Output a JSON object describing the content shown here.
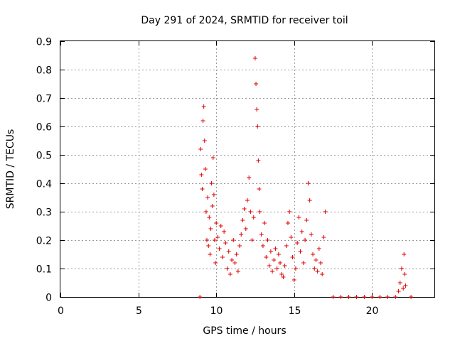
{
  "chart_data": {
    "type": "scatter",
    "title": "Day 291 of 2024, SRMTID for receiver toil",
    "xlabel": "GPS time / hours",
    "ylabel": "SRMTID / TECUs",
    "xlim": [
      0,
      24
    ],
    "ylim": [
      0,
      0.9
    ],
    "xticks": [
      "0",
      "5",
      "10",
      "15",
      "20"
    ],
    "yticks": [
      "0",
      "0.1",
      "0.2",
      "0.3",
      "0.4",
      "0.5",
      "0.6",
      "0.7",
      "0.8",
      "0.9"
    ],
    "grid": true,
    "marker": "+",
    "color": "#e00000",
    "series": [
      {
        "x": [
          8.95,
          9.0,
          9.05,
          9.1,
          9.15,
          9.2,
          9.25,
          9.3,
          9.35,
          9.4,
          9.45,
          9.5,
          9.55,
          9.6,
          9.65,
          9.7,
          9.75,
          9.8,
          9.85,
          9.9,
          9.95,
          10.0,
          10.1,
          10.2,
          10.3,
          10.4,
          10.5,
          10.6,
          10.7,
          10.8,
          10.9,
          11.0,
          11.1,
          11.2,
          11.3,
          11.4,
          11.5,
          11.6,
          11.7,
          11.8,
          11.9,
          12.0,
          12.1,
          12.2,
          12.3,
          12.4,
          12.5,
          12.55,
          12.6,
          12.65,
          12.7,
          12.75,
          12.8,
          12.9,
          13.0,
          13.1,
          13.2,
          13.3,
          13.4,
          13.5,
          13.6,
          13.7,
          13.8,
          13.9,
          14.0,
          14.1,
          14.2,
          14.3,
          14.4,
          14.5,
          14.6,
          14.7,
          14.8,
          14.9,
          15.0,
          15.1,
          15.2,
          15.3,
          15.4,
          15.5,
          15.6,
          15.7,
          15.8,
          15.9,
          16.0,
          16.1,
          16.2,
          16.3,
          16.4,
          16.5,
          16.6,
          16.7,
          16.8,
          16.9,
          17.0,
          17.5,
          18.0,
          18.5,
          19.0,
          19.5,
          20.0,
          20.5,
          21.0,
          21.5,
          21.7,
          21.8,
          21.9,
          22.0,
          22.05,
          22.1,
          22.15,
          22.5
        ],
        "y": [
          0.0,
          0.52,
          0.43,
          0.38,
          0.62,
          0.67,
          0.55,
          0.45,
          0.3,
          0.2,
          0.35,
          0.18,
          0.28,
          0.15,
          0.24,
          0.4,
          0.32,
          0.49,
          0.36,
          0.2,
          0.12,
          0.26,
          0.21,
          0.17,
          0.25,
          0.14,
          0.23,
          0.19,
          0.1,
          0.16,
          0.08,
          0.13,
          0.2,
          0.12,
          0.15,
          0.09,
          0.18,
          0.22,
          0.27,
          0.31,
          0.24,
          0.34,
          0.42,
          0.3,
          0.2,
          0.28,
          0.84,
          0.75,
          0.66,
          0.6,
          0.48,
          0.38,
          0.3,
          0.22,
          0.18,
          0.26,
          0.14,
          0.2,
          0.11,
          0.16,
          0.09,
          0.13,
          0.17,
          0.1,
          0.15,
          0.12,
          0.08,
          0.07,
          0.11,
          0.18,
          0.26,
          0.3,
          0.21,
          0.14,
          0.06,
          0.1,
          0.19,
          0.28,
          0.16,
          0.23,
          0.12,
          0.2,
          0.27,
          0.4,
          0.34,
          0.22,
          0.15,
          0.1,
          0.13,
          0.09,
          0.17,
          0.12,
          0.08,
          0.21,
          0.3,
          0.0,
          0.0,
          0.0,
          0.0,
          0.0,
          0.0,
          0.0,
          0.0,
          0.0,
          0.02,
          0.05,
          0.1,
          0.03,
          0.15,
          0.08,
          0.04,
          0.0
        ]
      }
    ]
  }
}
